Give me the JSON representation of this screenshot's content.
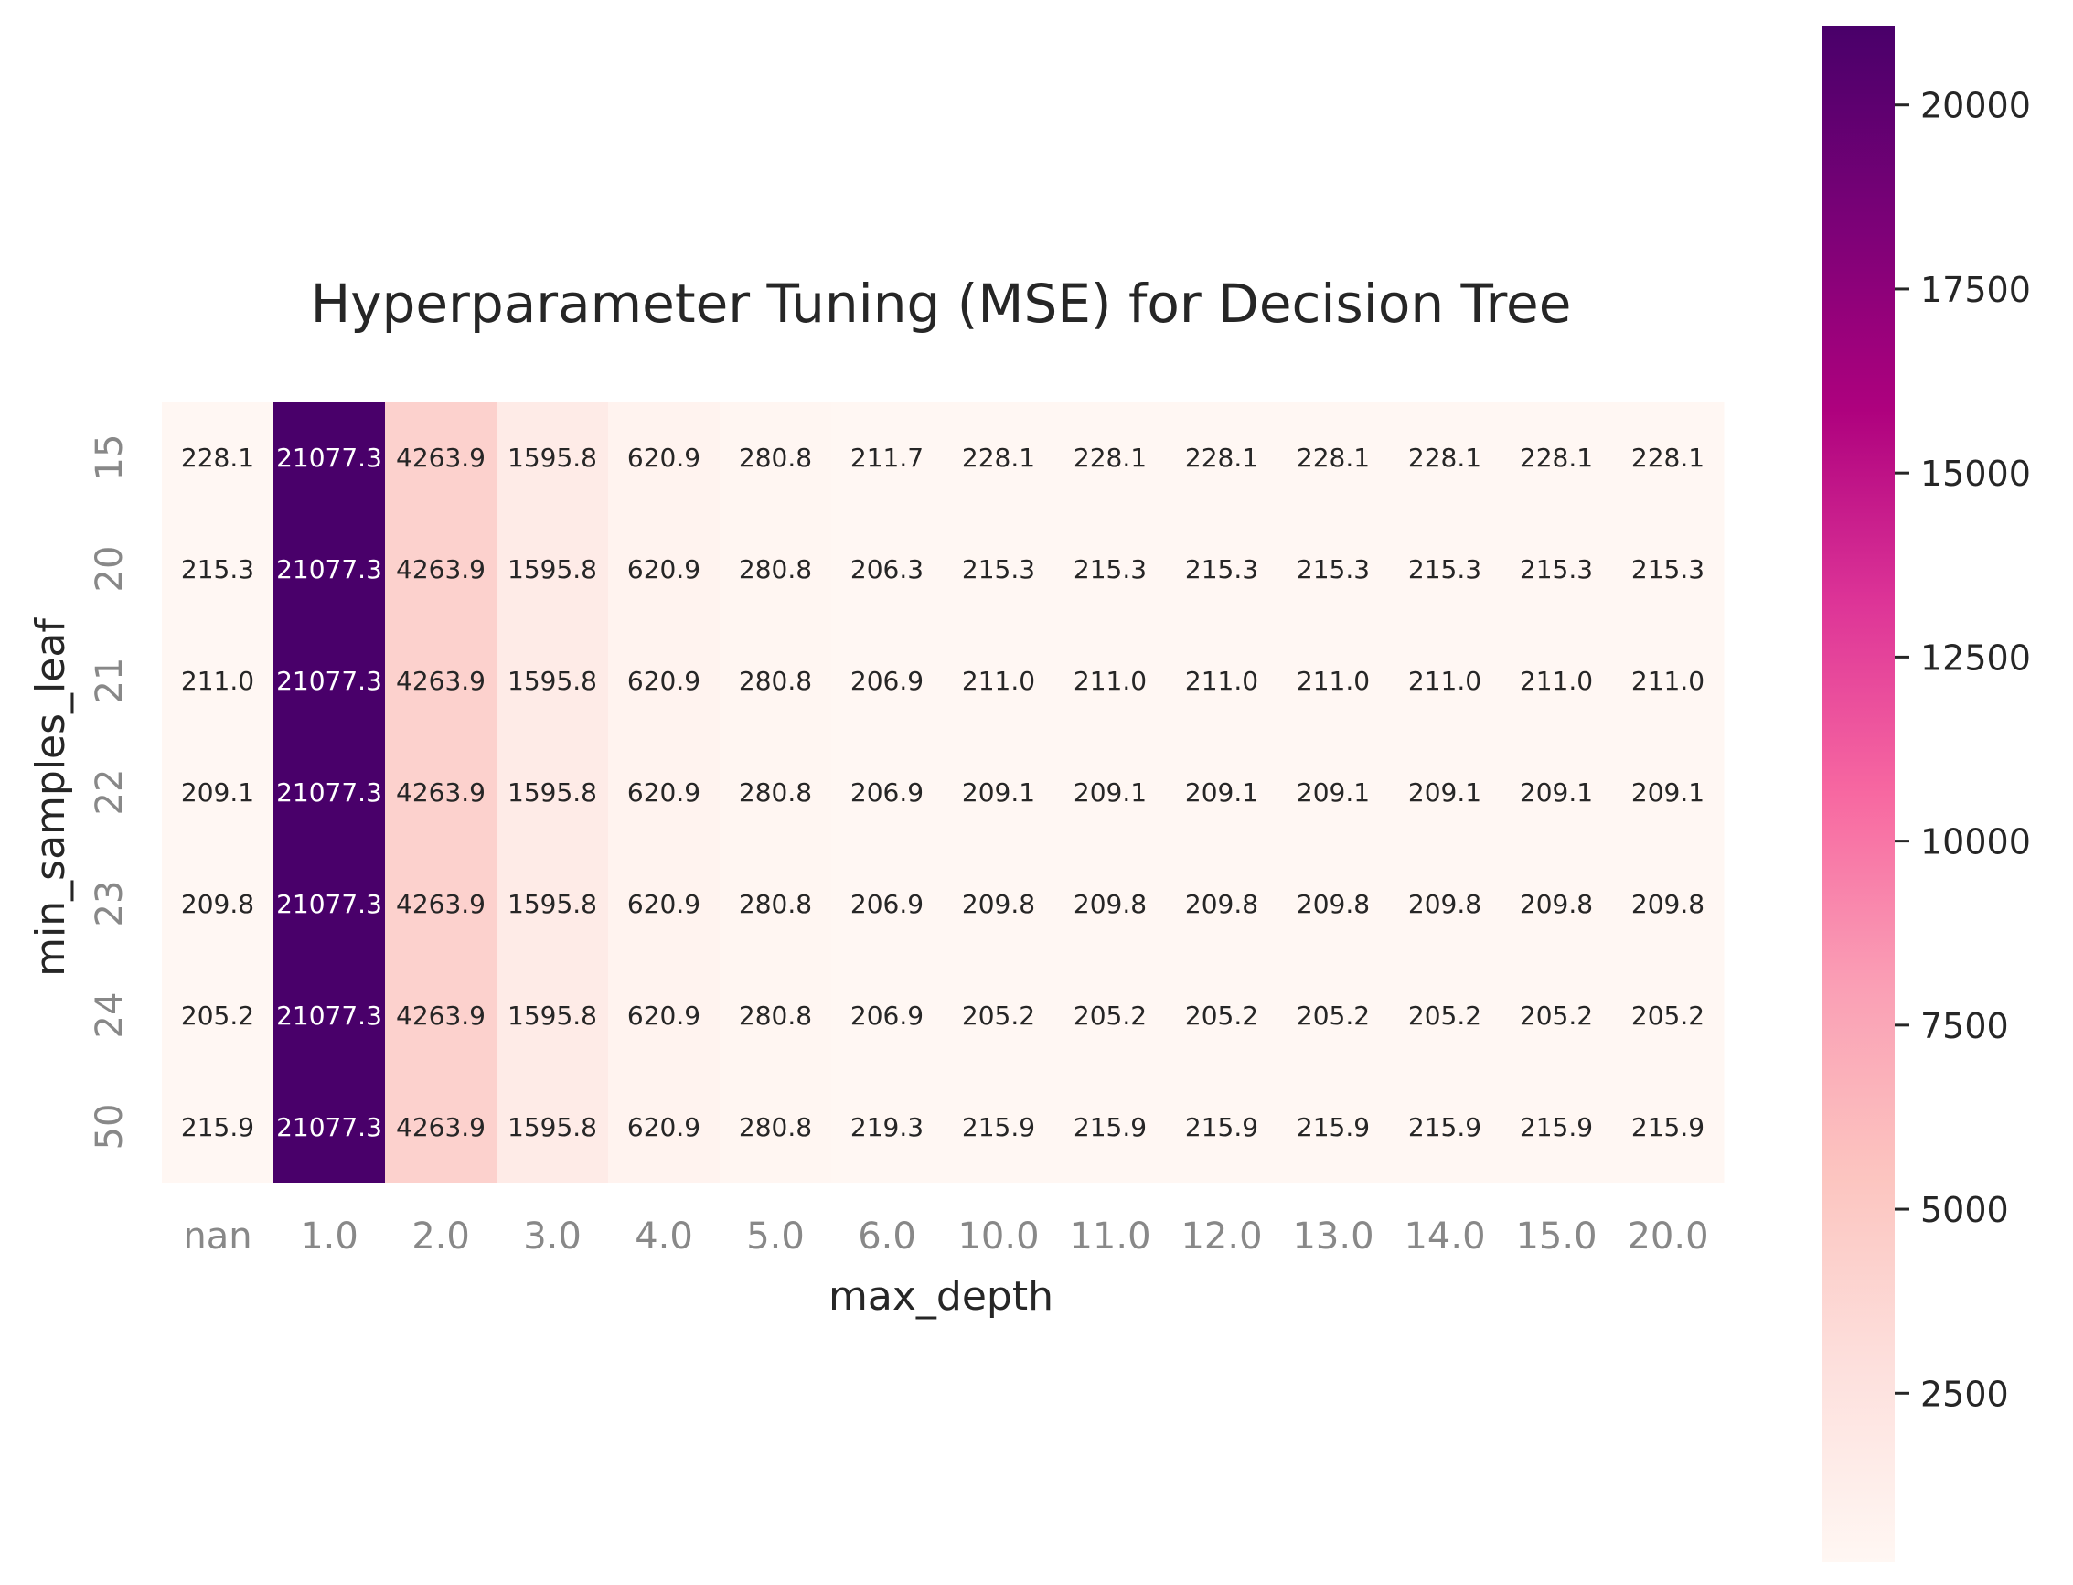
{
  "chart_data": {
    "type": "heatmap",
    "title": "Hyperparameter Tuning (MSE) for Decision Tree",
    "xlabel": "max_depth",
    "ylabel": "min_samples_leaf",
    "x_categories": [
      "nan",
      "1.0",
      "2.0",
      "3.0",
      "4.0",
      "5.0",
      "6.0",
      "10.0",
      "11.0",
      "12.0",
      "13.0",
      "14.0",
      "15.0",
      "20.0"
    ],
    "y_categories": [
      "15",
      "20",
      "21",
      "22",
      "23",
      "24",
      "50"
    ],
    "values": [
      [
        228.1,
        21077.3,
        4263.9,
        1595.8,
        620.9,
        280.8,
        211.7,
        228.1,
        228.1,
        228.1,
        228.1,
        228.1,
        228.1,
        228.1
      ],
      [
        215.3,
        21077.3,
        4263.9,
        1595.8,
        620.9,
        280.8,
        206.3,
        215.3,
        215.3,
        215.3,
        215.3,
        215.3,
        215.3,
        215.3
      ],
      [
        211.0,
        21077.3,
        4263.9,
        1595.8,
        620.9,
        280.8,
        206.9,
        211.0,
        211.0,
        211.0,
        211.0,
        211.0,
        211.0,
        211.0
      ],
      [
        209.1,
        21077.3,
        4263.9,
        1595.8,
        620.9,
        280.8,
        206.9,
        209.1,
        209.1,
        209.1,
        209.1,
        209.1,
        209.1,
        209.1
      ],
      [
        209.8,
        21077.3,
        4263.9,
        1595.8,
        620.9,
        280.8,
        206.9,
        209.8,
        209.8,
        209.8,
        209.8,
        209.8,
        209.8,
        209.8
      ],
      [
        205.2,
        21077.3,
        4263.9,
        1595.8,
        620.9,
        280.8,
        206.9,
        205.2,
        205.2,
        205.2,
        205.2,
        205.2,
        205.2,
        205.2
      ],
      [
        215.9,
        21077.3,
        4263.9,
        1595.8,
        620.9,
        280.8,
        219.3,
        215.9,
        215.9,
        215.9,
        215.9,
        215.9,
        215.9,
        215.9
      ]
    ],
    "value_format": "0.1f",
    "colormap": "RdPu",
    "colorbar": {
      "min": 205.2,
      "max": 21077.3,
      "ticks": [
        2500,
        5000,
        7500,
        10000,
        12500,
        15000,
        17500,
        20000
      ]
    },
    "grid": false,
    "colors": {
      "background": "#ffffff",
      "tick_label": "#888888",
      "axis_label": "#262626"
    }
  }
}
